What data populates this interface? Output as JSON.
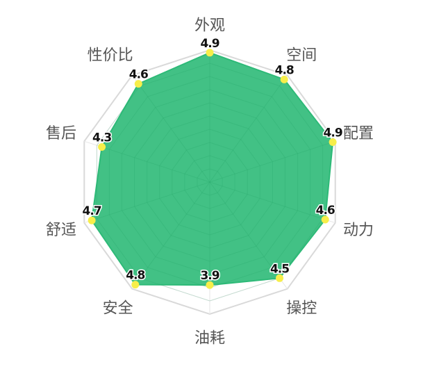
{
  "chart_data": {
    "type": "radar",
    "categories": [
      "外观",
      "空间",
      "配置",
      "动力",
      "操控",
      "油耗",
      "安全",
      "舒适",
      "售后",
      "性价比"
    ],
    "values": [
      4.9,
      4.8,
      4.9,
      4.6,
      4.5,
      3.9,
      4.8,
      4.7,
      4.3,
      4.6
    ],
    "value_labels": [
      "4.9",
      "4.8",
      "4.9",
      "4.6",
      "4.5",
      "3.9",
      "4.8",
      "4.7",
      "4.3",
      "4.6"
    ],
    "range": [
      0,
      5
    ],
    "grid": true,
    "legend": "none",
    "colors": {
      "fill": "#2eba78",
      "point": "#f7ee4a",
      "grid": "#e6e6e6",
      "outer_ring": "#d9d9d9",
      "inner_web": "#1f9e63"
    }
  }
}
